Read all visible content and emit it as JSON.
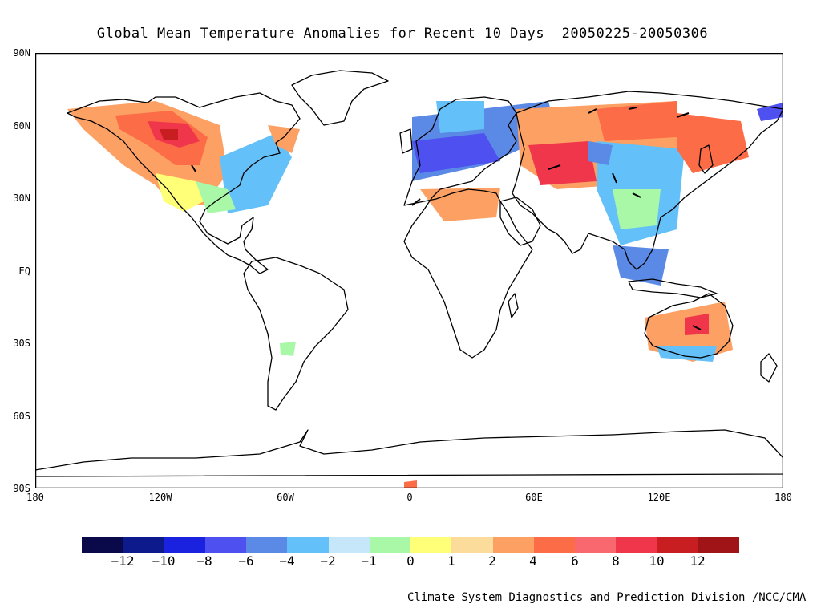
{
  "title": "Global Mean Temperature Anomalies for Recent 10 Days  20050225-20050306",
  "lat_labels": [
    "90N",
    "60N",
    "30N",
    "EQ",
    "30S",
    "60S",
    "90S"
  ],
  "lon_labels": [
    "180",
    "120W",
    "60W",
    "0",
    "60E",
    "120E",
    "180"
  ],
  "colorbar": {
    "colors": [
      "#0a0a4a",
      "#0c1a8c",
      "#1a22e0",
      "#4e50f0",
      "#5a8ae6",
      "#64c0f8",
      "#c6e6fa",
      "#a8f8a8",
      "#ffff78",
      "#fcdc9a",
      "#fca064",
      "#fc6c46",
      "#f8686e",
      "#f0364a",
      "#c81e22",
      "#a01418"
    ],
    "labels": [
      "-12",
      "-10",
      "-8",
      "-6",
      "-4",
      "-2",
      "-1",
      "0",
      "1",
      "2",
      "4",
      "6",
      "8",
      "10",
      "12"
    ]
  },
  "anomaly_regions": [
    {
      "region": "western-north-america",
      "range": "4 to 12"
    },
    {
      "region": "eastern-north-america",
      "range": "-4 to -1"
    },
    {
      "region": "europe",
      "range": "-8 to -4"
    },
    {
      "region": "central-asia",
      "range": "4 to 10"
    },
    {
      "region": "siberia",
      "range": "4 to 8"
    },
    {
      "region": "east-asia",
      "range": "-4 to -1"
    },
    {
      "region": "australia",
      "range": "2 to 6"
    }
  ],
  "credit": "Climate System Diagnostics and Prediction Division /NCC/CMA"
}
